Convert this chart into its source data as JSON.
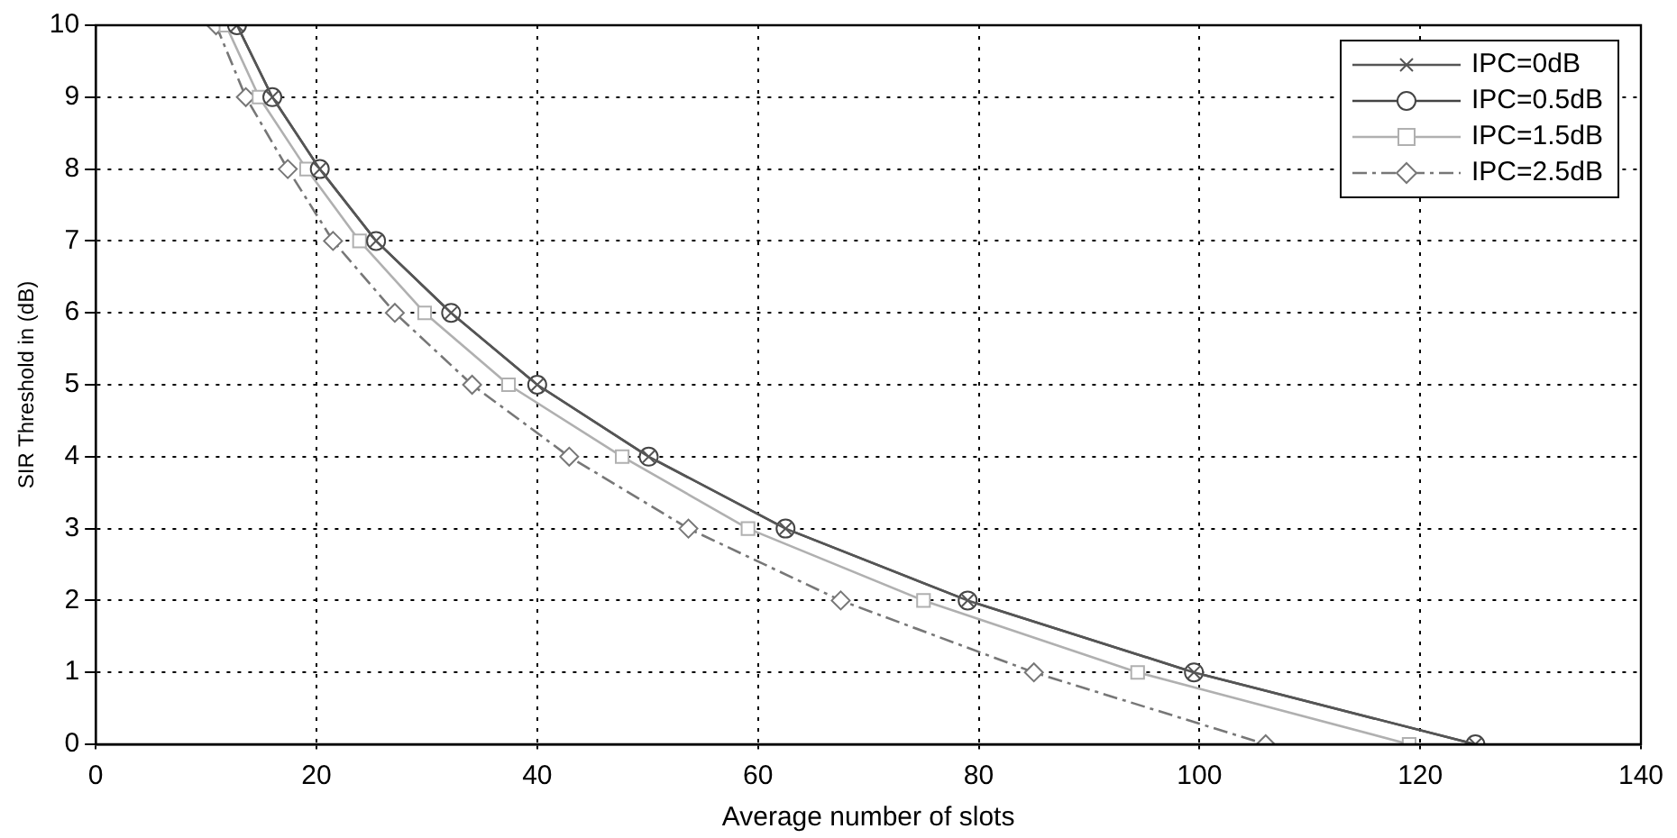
{
  "chart_data": {
    "type": "line",
    "xlabel": "Average number of slots",
    "ylabel": "SIR Threshold in (dB)",
    "xlim": [
      0,
      140
    ],
    "xticks": [
      0,
      20,
      40,
      60,
      80,
      100,
      120,
      140
    ],
    "ylim": [
      0,
      10
    ],
    "yticks": [
      0,
      1,
      2,
      3,
      4,
      5,
      6,
      7,
      8,
      9,
      10
    ],
    "grid": true,
    "legend": "top right",
    "series": [
      {
        "name": "IPC=0dB",
        "color": "#555555",
        "marker": "cross",
        "line_style": "solid",
        "x": [
          12.8,
          16.0,
          20.3,
          25.4,
          32.2,
          40.0,
          50.1,
          62.5,
          79.0,
          99.5,
          125
        ],
        "values": [
          10,
          9,
          8,
          7,
          6,
          5,
          4,
          3,
          2,
          1,
          0
        ]
      },
      {
        "name": "IPC=0.5dB",
        "color": "#444444",
        "marker": "circle",
        "line_style": "solid",
        "x": [
          12.8,
          16.0,
          20.3,
          25.4,
          32.2,
          40.0,
          50.1,
          62.5,
          79.0,
          99.5,
          125
        ],
        "values": [
          10,
          9,
          8,
          7,
          6,
          5,
          4,
          3,
          2,
          1,
          0
        ]
      },
      {
        "name": "IPC=1.5dB",
        "color": "#b0b0b0",
        "marker": "square",
        "line_style": "solid",
        "x": [
          11.8,
          14.8,
          19.1,
          23.9,
          29.8,
          37.4,
          47.7,
          59.1,
          75.0,
          94.4,
          119
        ],
        "values": [
          10,
          9,
          8,
          7,
          6,
          5,
          4,
          3,
          2,
          1,
          0
        ]
      },
      {
        "name": "IPC=2.5dB",
        "color": "#777777",
        "marker": "diamond",
        "line_style": "dashed",
        "x": [
          10.9,
          13.6,
          17.4,
          21.5,
          27.1,
          34.1,
          42.9,
          53.7,
          67.5,
          85.0,
          106
        ],
        "values": [
          10,
          9,
          8,
          7,
          6,
          5,
          4,
          3,
          2,
          1,
          0
        ]
      }
    ]
  }
}
